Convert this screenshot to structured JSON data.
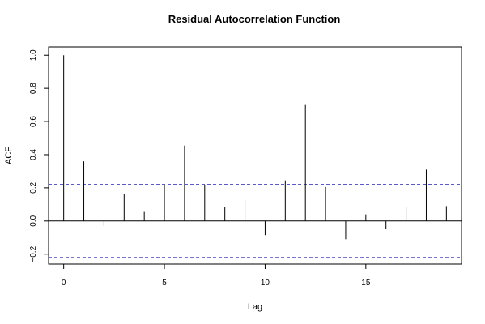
{
  "chart_data": {
    "type": "bar",
    "title": "Residual Autocorrelation Function",
    "xlabel": "Lag",
    "ylabel": "ACF",
    "x": [
      0,
      1,
      2,
      3,
      4,
      5,
      6,
      7,
      8,
      9,
      10,
      11,
      12,
      13,
      14,
      15,
      16,
      17,
      18,
      19
    ],
    "values": [
      1.0,
      0.36,
      -0.03,
      0.165,
      0.055,
      0.22,
      0.455,
      0.215,
      0.085,
      0.125,
      -0.085,
      0.245,
      0.7,
      0.205,
      -0.11,
      0.04,
      -0.05,
      0.085,
      0.31,
      0.09
    ],
    "confidence_band": [
      -0.22,
      0.22
    ],
    "xlim": [
      -0.75,
      19.75
    ],
    "ylim": [
      -0.26,
      1.05
    ],
    "xticks": [
      0,
      5,
      10,
      15
    ],
    "yticks": [
      -0.2,
      0.0,
      0.2,
      0.4,
      0.6,
      0.8,
      1.0
    ],
    "xtick_labels": [
      "0",
      "5",
      "10",
      "15"
    ],
    "ytick_labels": [
      "−0.2",
      "0.0",
      "0.2",
      "0.4",
      "0.6",
      "0.8",
      "1.0"
    ],
    "grid": false,
    "colors": {
      "bars": "#000000",
      "confidence": "#2222bb",
      "zero_line": "#000000"
    }
  }
}
